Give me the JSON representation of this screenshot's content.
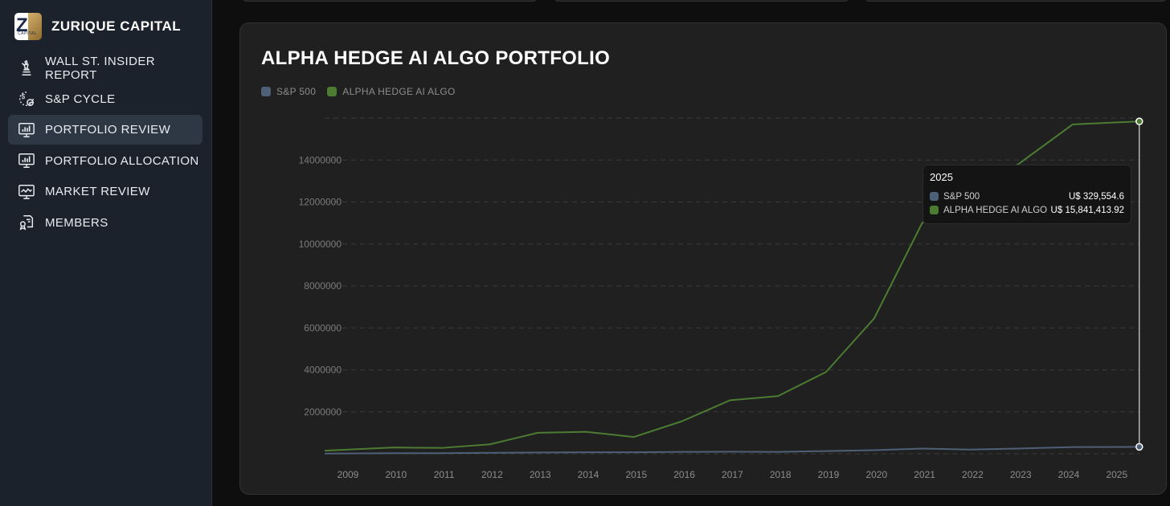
{
  "brand": {
    "name": "ZURIQUE CAPITAL",
    "logo_letter": "Z",
    "logo_small": "CAPITAL"
  },
  "sidebar": {
    "items": [
      {
        "label": "WALL ST. INSIDER REPORT",
        "icon": "statue-icon",
        "active": false
      },
      {
        "label": "S&P CYCLE",
        "icon": "dollar-cycle-icon",
        "active": false
      },
      {
        "label": "PORTFOLIO REVIEW",
        "icon": "chart-monitor-icon",
        "active": true
      },
      {
        "label": "PORTFOLIO ALLOCATION",
        "icon": "chart-monitor-icon",
        "active": false
      },
      {
        "label": "MARKET REVIEW",
        "icon": "trend-monitor-icon",
        "active": false
      },
      {
        "label": "MEMBERS",
        "icon": "certificate-icon",
        "active": false
      }
    ]
  },
  "panel": {
    "title": "ALPHA HEDGE AI ALGO PORTFOLIO"
  },
  "colors": {
    "sp500": "#4e5f78",
    "alpha": "#4b7c32",
    "tooltip_bg": "#141414"
  },
  "tooltip": {
    "title": "2025",
    "rows": [
      {
        "name": "S&P 500",
        "value": "U$ 329,554.6"
      },
      {
        "name": "ALPHA HEDGE AI ALGO",
        "value": "U$ 15,841,413.92"
      }
    ]
  },
  "chart_data": {
    "type": "line",
    "title": "ALPHA HEDGE AI ALGO PORTFOLIO",
    "x": [
      "2009",
      "2010",
      "2011",
      "2012",
      "2013",
      "2014",
      "2015",
      "2016",
      "2017",
      "2018",
      "2019",
      "2020",
      "2021",
      "2022",
      "2023",
      "2024",
      "2025"
    ],
    "series": [
      {
        "name": "S&P 500",
        "values": [
          10000,
          30000,
          30000,
          50000,
          60000,
          70000,
          70000,
          90000,
          100000,
          90000,
          130000,
          170000,
          250000,
          200000,
          250000,
          320000,
          329554.6
        ]
      },
      {
        "name": "ALPHA HEDGE AI ALGO",
        "values": [
          150000,
          300000,
          280000,
          450000,
          1000000,
          1050000,
          800000,
          1550000,
          2550000,
          2750000,
          3900000,
          6450000,
          11000000,
          12750000,
          13800000,
          15700000,
          15841413.92
        ]
      }
    ],
    "y_ticks": [
      "2000000",
      "4000000",
      "6000000",
      "8000000",
      "10000000",
      "12000000",
      "14000000"
    ],
    "ylim": [
      0,
      16000000
    ],
    "grid": true,
    "legend": "top-left"
  }
}
